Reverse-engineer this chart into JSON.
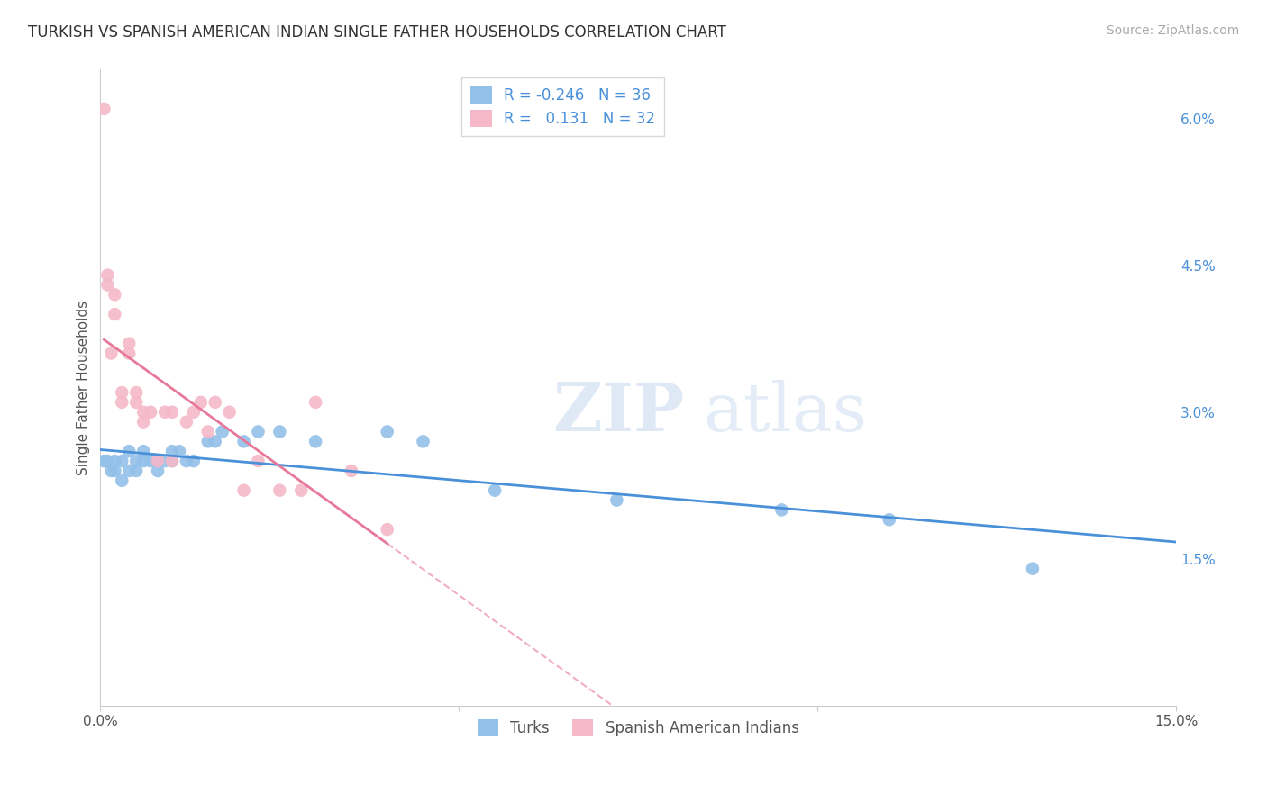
{
  "title": "TURKISH VS SPANISH AMERICAN INDIAN SINGLE FATHER HOUSEHOLDS CORRELATION CHART",
  "source": "Source: ZipAtlas.com",
  "ylabel": "Single Father Households",
  "xlim": [
    0.0,
    0.15
  ],
  "ylim": [
    0.0,
    0.065
  ],
  "xticks": [
    0.0,
    0.05,
    0.1,
    0.15
  ],
  "xticklabels": [
    "0.0%",
    "",
    "",
    "15.0%"
  ],
  "yticks_right": [
    0.015,
    0.03,
    0.045,
    0.06
  ],
  "ytick_labels_right": [
    "1.5%",
    "3.0%",
    "4.5%",
    "6.0%"
  ],
  "legend_labels": [
    "Turks",
    "Spanish American Indians"
  ],
  "r_turks": -0.246,
  "n_turks": 36,
  "r_spanish": 0.131,
  "n_spanish": 32,
  "turks_color": "#92c0e8",
  "spanish_color": "#f5b8c8",
  "turks_line_color": "#4a90d9",
  "spanish_line_color": "#e8789a",
  "grid_color": "#d0d0d0",
  "background_color": "#ffffff",
  "title_fontsize": 12,
  "source_fontsize": 10,
  "turks_x": [
    0.0005,
    0.001,
    0.0015,
    0.002,
    0.002,
    0.003,
    0.003,
    0.004,
    0.004,
    0.005,
    0.005,
    0.006,
    0.006,
    0.007,
    0.008,
    0.008,
    0.009,
    0.01,
    0.01,
    0.011,
    0.012,
    0.013,
    0.015,
    0.016,
    0.017,
    0.02,
    0.022,
    0.025,
    0.03,
    0.04,
    0.045,
    0.055,
    0.072,
    0.095,
    0.11,
    0.13
  ],
  "turks_y": [
    0.025,
    0.025,
    0.024,
    0.024,
    0.025,
    0.023,
    0.025,
    0.024,
    0.026,
    0.024,
    0.025,
    0.025,
    0.026,
    0.025,
    0.025,
    0.024,
    0.025,
    0.026,
    0.025,
    0.026,
    0.025,
    0.025,
    0.027,
    0.027,
    0.028,
    0.027,
    0.028,
    0.028,
    0.027,
    0.028,
    0.027,
    0.022,
    0.021,
    0.02,
    0.019,
    0.014
  ],
  "spanish_x": [
    0.0005,
    0.001,
    0.001,
    0.0015,
    0.002,
    0.002,
    0.003,
    0.003,
    0.004,
    0.004,
    0.005,
    0.005,
    0.006,
    0.006,
    0.007,
    0.008,
    0.009,
    0.01,
    0.01,
    0.012,
    0.013,
    0.014,
    0.015,
    0.016,
    0.018,
    0.02,
    0.022,
    0.025,
    0.028,
    0.03,
    0.035,
    0.04
  ],
  "spanish_y": [
    0.061,
    0.043,
    0.044,
    0.036,
    0.04,
    0.042,
    0.031,
    0.032,
    0.036,
    0.037,
    0.031,
    0.032,
    0.029,
    0.03,
    0.03,
    0.025,
    0.03,
    0.025,
    0.03,
    0.029,
    0.03,
    0.031,
    0.028,
    0.031,
    0.03,
    0.022,
    0.025,
    0.022,
    0.022,
    0.031,
    0.024,
    0.018
  ]
}
